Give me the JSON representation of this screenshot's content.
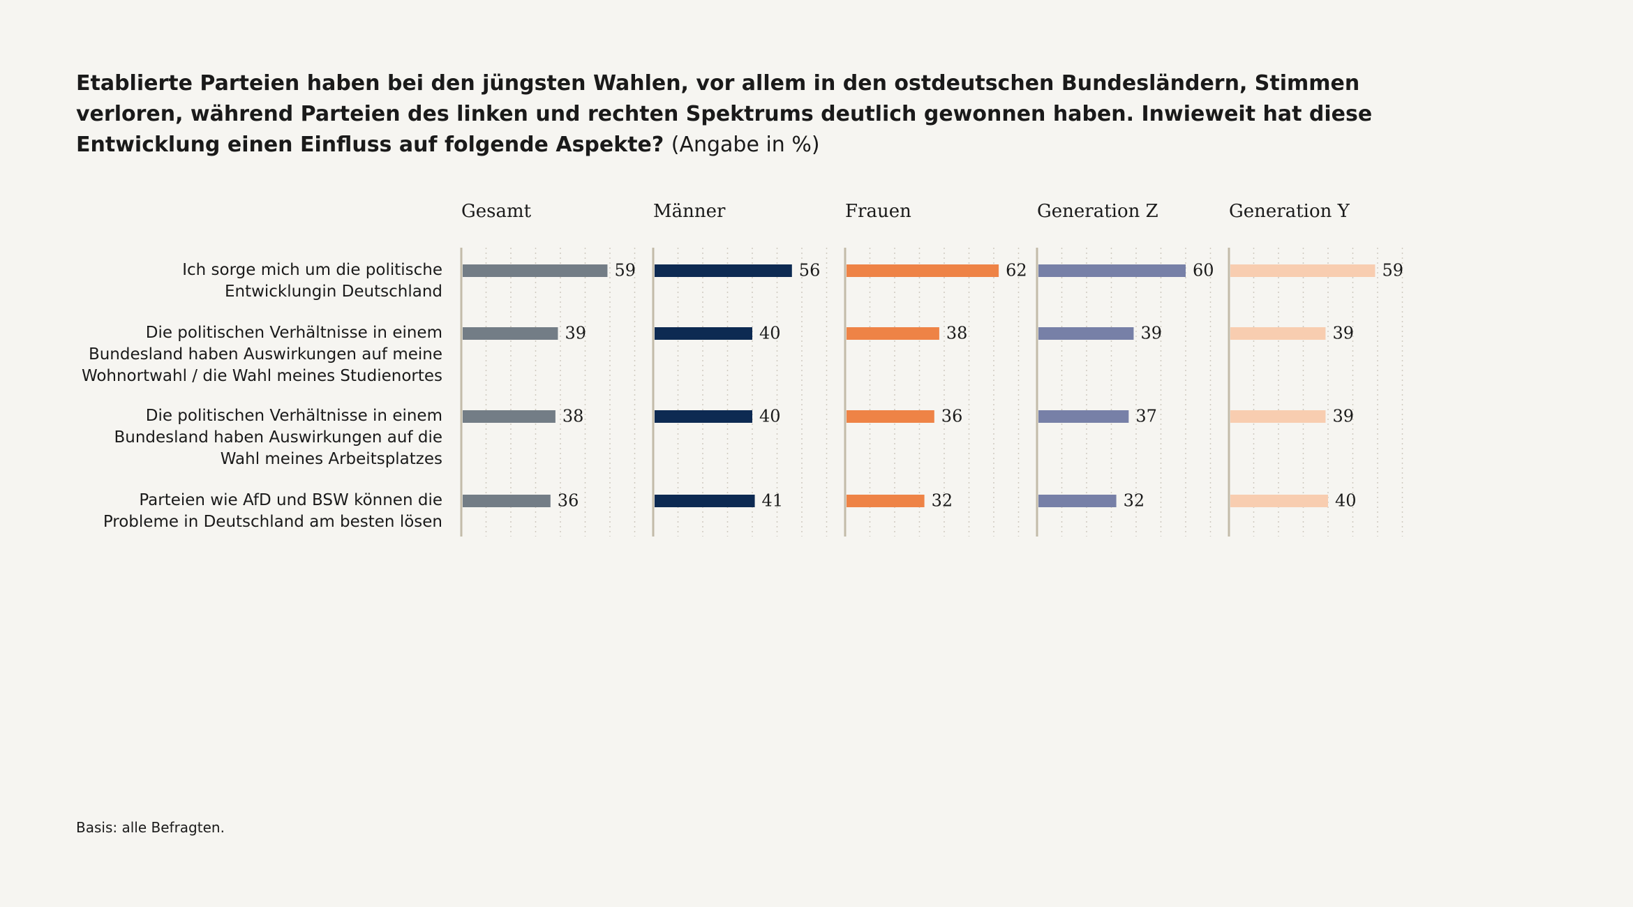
{
  "chart_data": {
    "type": "bar",
    "orientation": "horizontal",
    "title": "Etablierte Parteien haben bei den jüngsten Wahlen, vor allem in den ostdeutschen Bundesländern, Stimmen verloren, während Parteien des linken und rechten Spektrums deutlich gewonnen haben. Inwieweit hat diese Entwicklung einen Einfluss auf folgende Aspekte?",
    "subtitle": "(Angabe in %)",
    "categories": [
      "Ich sorge mich um die  politische Entwicklungin Deutschland",
      "Die politischen Verhältnisse in einem Bundesland haben Auswirkungen auf meine Wohnortwahl / die Wahl meines Studienortes",
      "Die politischen Verhältnisse in einem Bundesland haben Auswirkungen auf die Wahl meines Arbeitsplatzes",
      "Parteien wie AfD und BSW können die Probleme in Deutschland am besten lösen"
    ],
    "series": [
      {
        "name": "Gesamt",
        "color": "#737d86",
        "values": [
          59,
          39,
          38,
          36
        ]
      },
      {
        "name": "Männer",
        "color": "#0d2a52",
        "values": [
          56,
          40,
          40,
          41
        ]
      },
      {
        "name": "Frauen",
        "color": "#ee8346",
        "values": [
          62,
          38,
          36,
          32
        ]
      },
      {
        "name": "Generation Z",
        "color": "#7780a7",
        "values": [
          60,
          39,
          37,
          32
        ]
      },
      {
        "name": "Generation Y",
        "color": "#f8cdb0",
        "values": [
          59,
          39,
          39,
          40
        ]
      }
    ],
    "xlim": [
      0,
      70
    ],
    "xticks": [
      0,
      10,
      20,
      30,
      40,
      50,
      60,
      70
    ],
    "grid": true,
    "note": "Basis: alle Befragten."
  }
}
